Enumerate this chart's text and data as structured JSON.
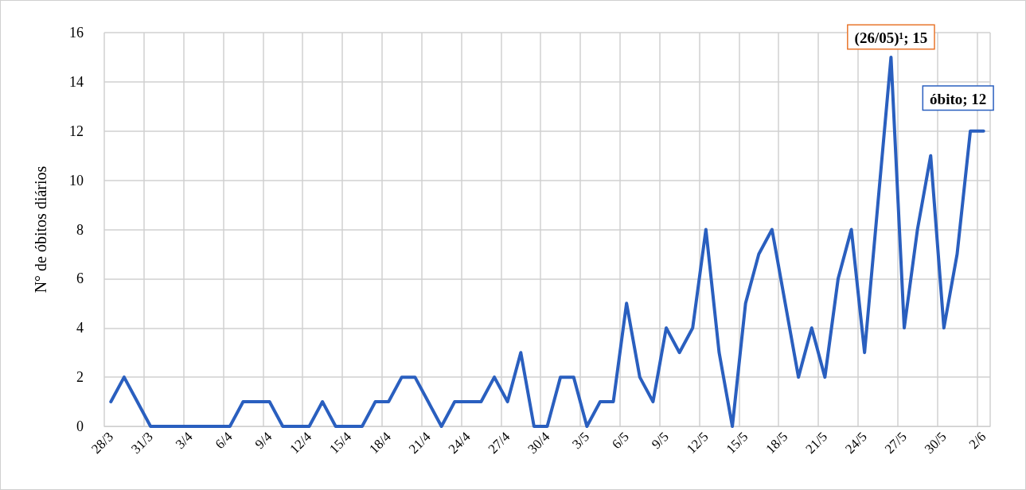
{
  "chart_data": {
    "type": "line",
    "ylabel": "N° de óbitos diários",
    "categories": [
      "28/3",
      null,
      null,
      "31/3",
      null,
      null,
      "3/4",
      null,
      null,
      "6/4",
      null,
      null,
      "9/4",
      null,
      null,
      "12/4",
      null,
      null,
      "15/4",
      null,
      null,
      "18/4",
      null,
      null,
      "21/4",
      null,
      null,
      "24/4",
      null,
      null,
      "27/4",
      null,
      null,
      "30/4",
      null,
      null,
      "3/5",
      null,
      null,
      "6/5",
      null,
      null,
      "9/5",
      null,
      null,
      "12/5",
      null,
      null,
      "15/5",
      null,
      null,
      "18/5",
      null,
      null,
      "21/5",
      null,
      null,
      "24/5",
      null,
      null,
      "27/5",
      null,
      null,
      "30/5",
      null,
      null,
      "2/6"
    ],
    "series": [
      {
        "color": "#2a5fbf",
        "values": [
          1,
          2,
          1,
          0,
          0,
          0,
          0,
          0,
          0,
          0,
          1,
          1,
          1,
          0,
          0,
          0,
          1,
          0,
          0,
          0,
          1,
          1,
          2,
          2,
          1,
          0,
          1,
          1,
          1,
          2,
          1,
          3,
          0,
          0,
          2,
          2,
          0,
          1,
          1,
          5,
          2,
          1,
          4,
          3,
          4,
          8,
          3,
          0,
          5,
          7,
          8,
          5,
          2,
          4,
          2,
          6,
          8,
          3,
          9,
          15,
          4,
          8,
          11,
          4,
          7,
          12,
          12
        ]
      }
    ],
    "ylim": [
      0,
      16
    ],
    "yticks": [
      0,
      2,
      4,
      6,
      8,
      10,
      12,
      14,
      16
    ],
    "grid": true,
    "marker": "none",
    "line_style": "solid",
    "annotations": [
      {
        "text": "(26/05)¹; 15",
        "y": 15
      },
      {
        "text": "óbito; 12",
        "x": "2/6",
        "y": 12
      }
    ]
  }
}
